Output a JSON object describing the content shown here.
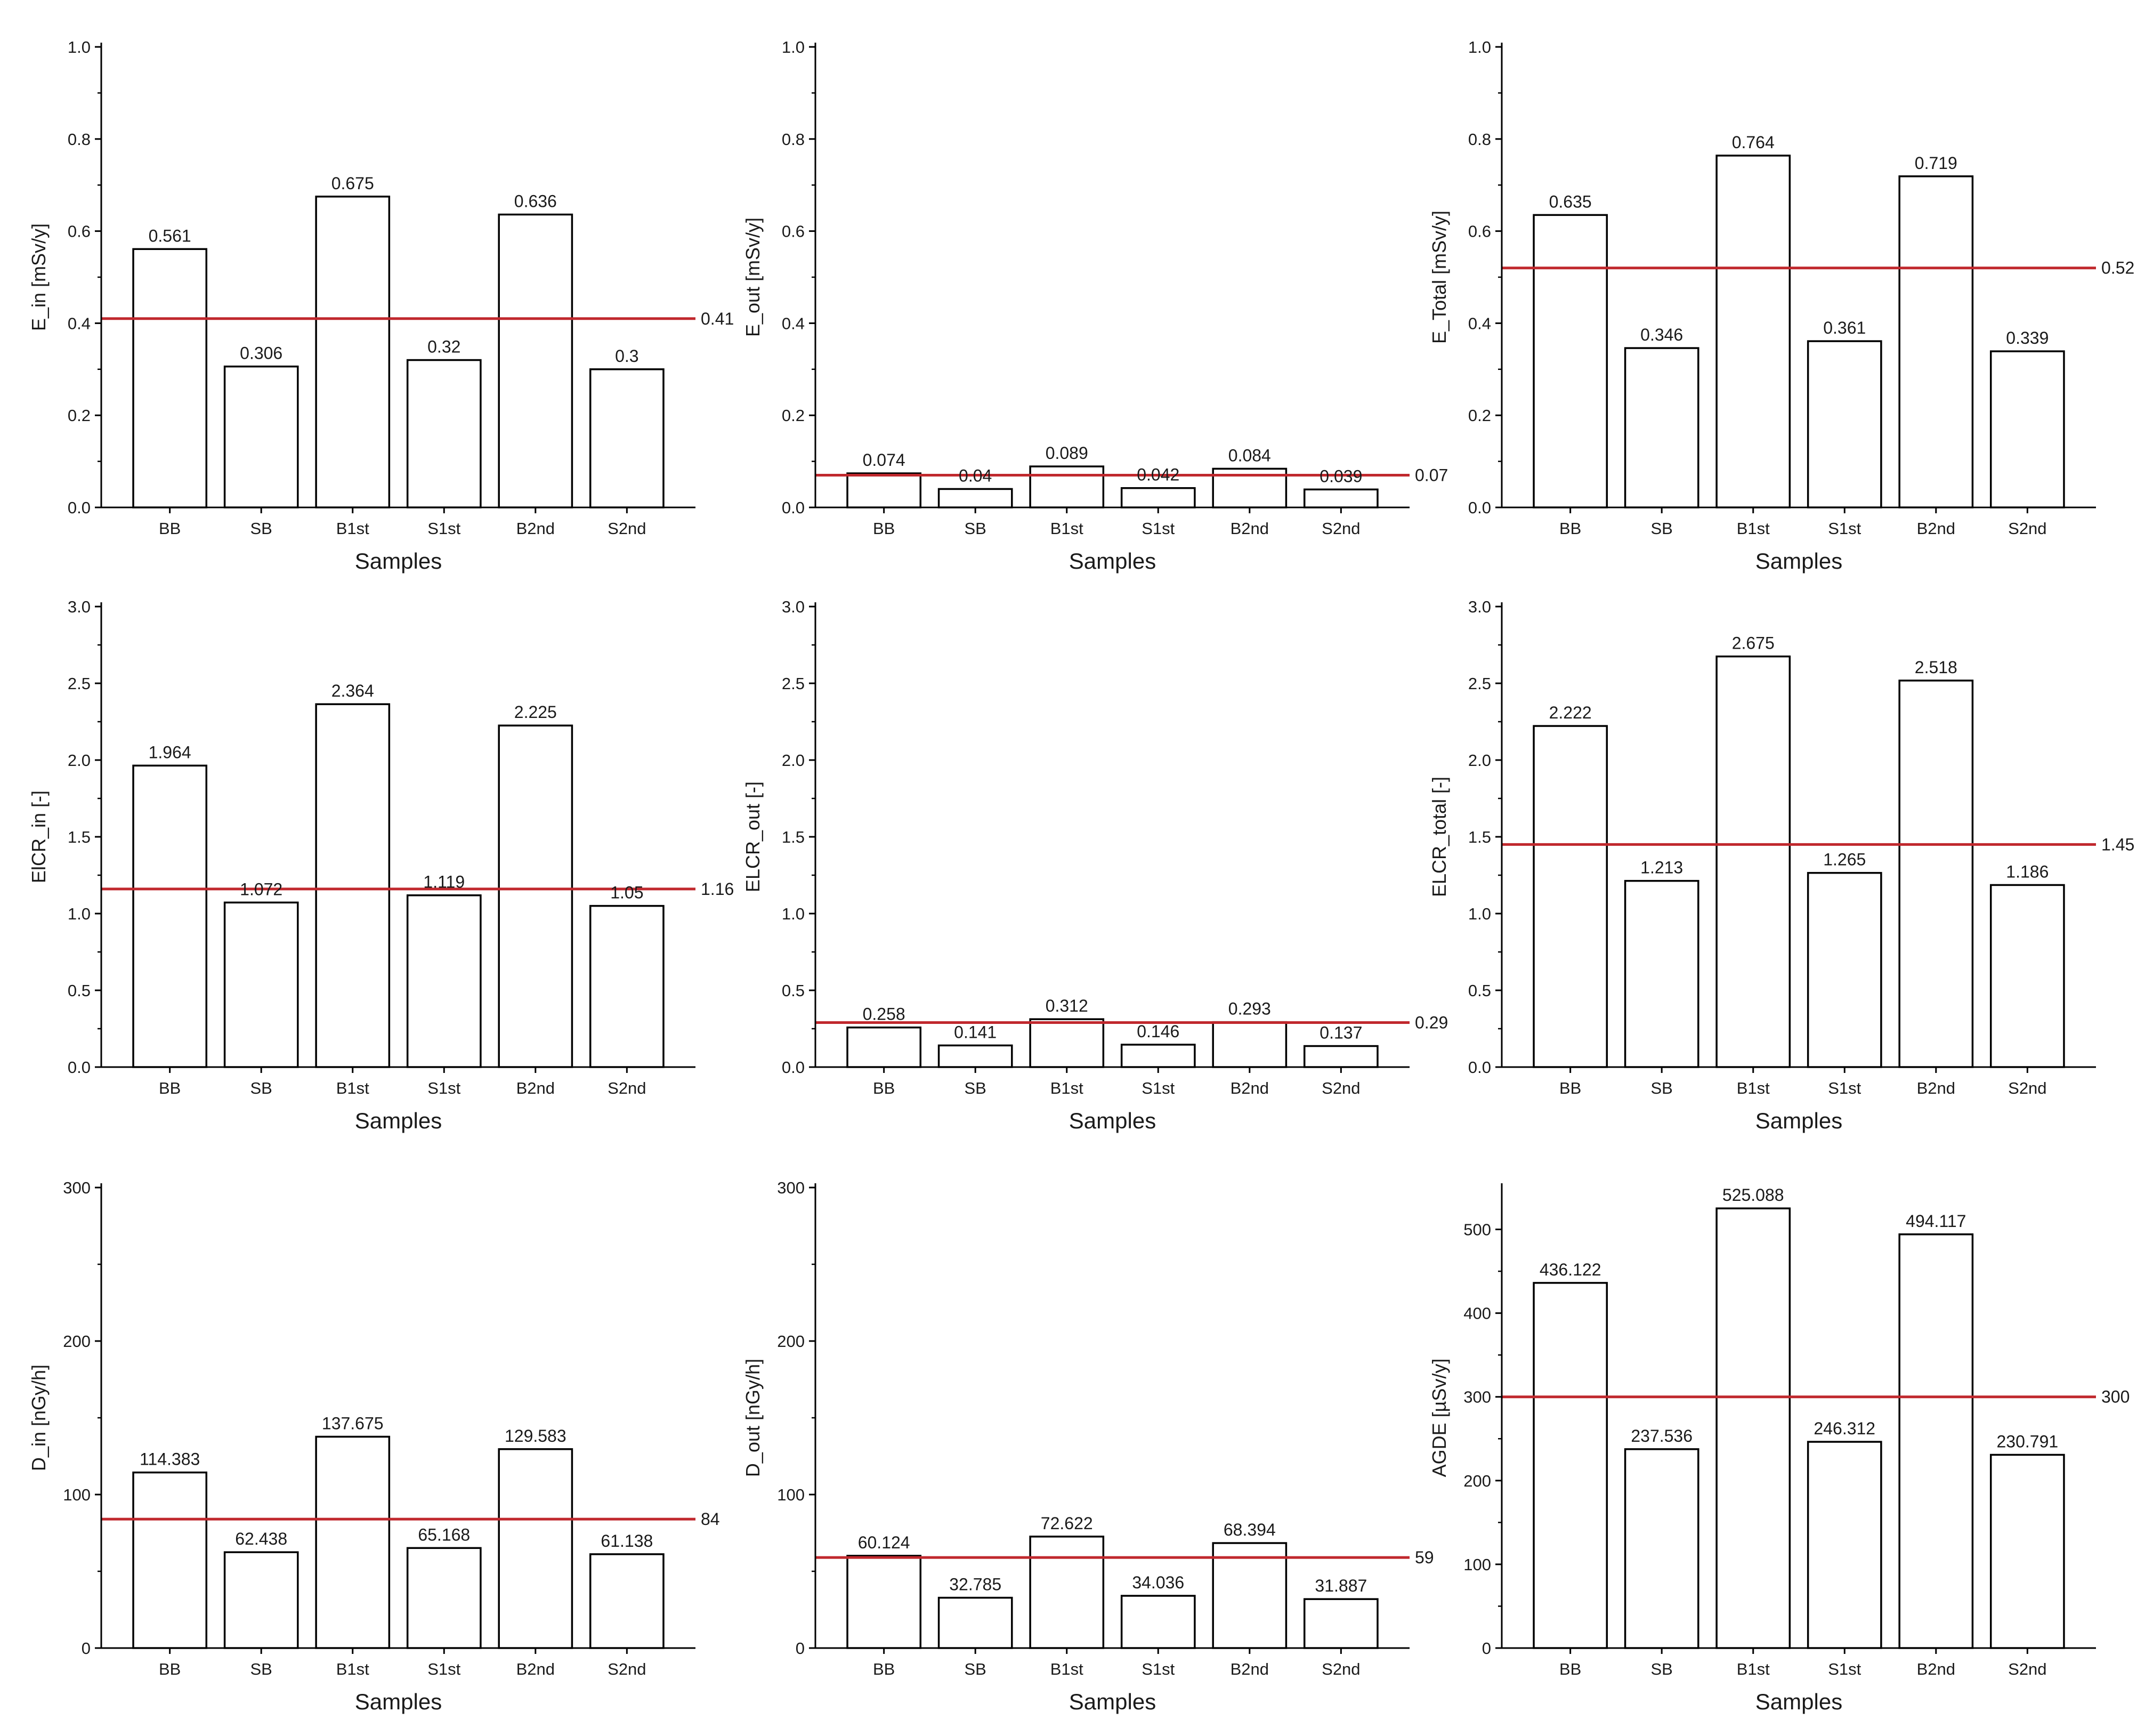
{
  "colors": {
    "bar_fill": "#ffffff",
    "bar_stroke": "#000000",
    "axis": "#000000",
    "reference_line": "#c0282d"
  },
  "chart_data": [
    {
      "type": "bar",
      "categories": [
        "BB",
        "SB",
        "B1st",
        "S1st",
        "B2nd",
        "S2nd"
      ],
      "values": [
        0.561,
        0.306,
        0.675,
        0.32,
        0.636,
        0.3
      ],
      "value_labels": [
        "0.561",
        "0.306",
        "0.675",
        "0.32",
        "0.636",
        "0.3"
      ],
      "xlabel": "Samples",
      "ylabel": "E_in [mSv/y]",
      "ylim": [
        0,
        1.0
      ],
      "yticks": [
        0,
        0.2,
        0.4,
        0.6,
        0.8,
        1.0
      ],
      "ytick_labels": [
        "0.0",
        "0.2",
        "0.4",
        "0.6",
        "0.8",
        "1.0"
      ],
      "reference": {
        "value": 0.41,
        "label": "0.41"
      },
      "grid": false
    },
    {
      "type": "bar",
      "categories": [
        "BB",
        "SB",
        "B1st",
        "S1st",
        "B2nd",
        "S2nd"
      ],
      "values": [
        0.074,
        0.04,
        0.089,
        0.042,
        0.084,
        0.039
      ],
      "value_labels": [
        "0.074",
        "0.04",
        "0.089",
        "0.042",
        "0.084",
        "0.039"
      ],
      "xlabel": "Samples",
      "ylabel": "E_out [mSv/y]",
      "ylim": [
        0,
        1.0
      ],
      "yticks": [
        0,
        0.2,
        0.4,
        0.6,
        0.8,
        1.0
      ],
      "ytick_labels": [
        "0.0",
        "0.2",
        "0.4",
        "0.6",
        "0.8",
        "1.0"
      ],
      "reference": {
        "value": 0.07,
        "label": "0.07"
      },
      "grid": false
    },
    {
      "type": "bar",
      "categories": [
        "BB",
        "SB",
        "B1st",
        "S1st",
        "B2nd",
        "S2nd"
      ],
      "values": [
        0.635,
        0.346,
        0.764,
        0.361,
        0.719,
        0.339
      ],
      "value_labels": [
        "0.635",
        "0.346",
        "0.764",
        "0.361",
        "0.719",
        "0.339"
      ],
      "xlabel": "Samples",
      "ylabel": "E_Total [mSv/y]",
      "ylim": [
        0,
        1.0
      ],
      "yticks": [
        0,
        0.2,
        0.4,
        0.6,
        0.8,
        1.0
      ],
      "ytick_labels": [
        "0.0",
        "0.2",
        "0.4",
        "0.6",
        "0.8",
        "1.0"
      ],
      "reference": {
        "value": 0.52,
        "label": "0.52"
      },
      "grid": false
    },
    {
      "type": "bar",
      "categories": [
        "BB",
        "SB",
        "B1st",
        "S1st",
        "B2nd",
        "S2nd"
      ],
      "values": [
        1.964,
        1.072,
        2.364,
        1.119,
        2.225,
        1.05
      ],
      "value_labels": [
        "1.964",
        "1.072",
        "2.364",
        "1.119",
        "2.225",
        "1.05"
      ],
      "xlabel": "Samples",
      "ylabel": "ElCR_in [-]",
      "ylim": [
        0,
        3.0
      ],
      "yticks": [
        0,
        0.5,
        1.0,
        1.5,
        2.0,
        2.5,
        3.0
      ],
      "ytick_labels": [
        "0.0",
        "0.5",
        "1.0",
        "1.5",
        "2.0",
        "2.5",
        "3.0"
      ],
      "reference": {
        "value": 1.16,
        "label": "1.16"
      },
      "grid": false
    },
    {
      "type": "bar",
      "categories": [
        "BB",
        "SB",
        "B1st",
        "S1st",
        "B2nd",
        "S2nd"
      ],
      "values": [
        0.258,
        0.141,
        0.312,
        0.146,
        0.293,
        0.137
      ],
      "value_labels": [
        "0.258",
        "0.141",
        "0.312",
        "0.146",
        "0.293",
        "0.137"
      ],
      "xlabel": "Samples",
      "ylabel": "ELCR_out [-]",
      "ylim": [
        0,
        3.0
      ],
      "yticks": [
        0,
        0.5,
        1.0,
        1.5,
        2.0,
        2.5,
        3.0
      ],
      "ytick_labels": [
        "0.0",
        "0.5",
        "1.0",
        "1.5",
        "2.0",
        "2.5",
        "3.0"
      ],
      "reference": {
        "value": 0.29,
        "label": "0.29"
      },
      "grid": false
    },
    {
      "type": "bar",
      "categories": [
        "BB",
        "SB",
        "B1st",
        "S1st",
        "B2nd",
        "S2nd"
      ],
      "values": [
        2.222,
        1.213,
        2.675,
        1.265,
        2.518,
        1.186
      ],
      "value_labels": [
        "2.222",
        "1.213",
        "2.675",
        "1.265",
        "2.518",
        "1.186"
      ],
      "xlabel": "Samples",
      "ylabel": "ELCR_total [-]",
      "ylim": [
        0,
        3.0
      ],
      "yticks": [
        0,
        0.5,
        1.0,
        1.5,
        2.0,
        2.5,
        3.0
      ],
      "ytick_labels": [
        "0.0",
        "0.5",
        "1.0",
        "1.5",
        "2.0",
        "2.5",
        "3.0"
      ],
      "reference": {
        "value": 1.45,
        "label": "1.45"
      },
      "grid": false
    },
    {
      "type": "bar",
      "categories": [
        "BB",
        "SB",
        "B1st",
        "S1st",
        "B2nd",
        "S2nd"
      ],
      "values": [
        114.383,
        62.438,
        137.675,
        65.168,
        129.583,
        61.138
      ],
      "value_labels": [
        "114.383",
        "62.438",
        "137.675",
        "65.168",
        "129.583",
        "61.138"
      ],
      "xlabel": "Samples",
      "ylabel": "D_in [nGy/h]",
      "ylim": [
        0,
        300
      ],
      "yticks": [
        0,
        100,
        200,
        300
      ],
      "ytick_labels": [
        "0",
        "100",
        "200",
        "300"
      ],
      "reference": {
        "value": 84,
        "label": "84"
      },
      "grid": false
    },
    {
      "type": "bar",
      "categories": [
        "BB",
        "SB",
        "B1st",
        "S1st",
        "B2nd",
        "S2nd"
      ],
      "values": [
        60.124,
        32.785,
        72.622,
        34.036,
        68.394,
        31.887
      ],
      "value_labels": [
        "60.124",
        "32.785",
        "72.622",
        "34.036",
        "68.394",
        "31.887"
      ],
      "xlabel": "Samples",
      "ylabel": "D_out [nGy/h]",
      "ylim": [
        0,
        300
      ],
      "yticks": [
        0,
        100,
        200,
        300
      ],
      "ytick_labels": [
        "0",
        "100",
        "200",
        "300"
      ],
      "reference": {
        "value": 59,
        "label": "59"
      },
      "grid": false
    },
    {
      "type": "bar",
      "categories": [
        "BB",
        "SB",
        "B1st",
        "S1st",
        "B2nd",
        "S2nd"
      ],
      "values": [
        436.122,
        237.536,
        525.088,
        246.312,
        494.117,
        230.791
      ],
      "value_labels": [
        "436.122",
        "237.536",
        "525.088",
        "246.312",
        "494.117",
        "230.791"
      ],
      "xlabel": "Samples",
      "ylabel": "AGDE [µSv/y]",
      "ylim": [
        0,
        550
      ],
      "yticks": [
        0,
        100,
        200,
        300,
        400,
        500
      ],
      "ytick_labels": [
        "0",
        "100",
        "200",
        "300",
        "400",
        "500"
      ],
      "reference": {
        "value": 300,
        "label": "300"
      },
      "grid": false
    }
  ]
}
